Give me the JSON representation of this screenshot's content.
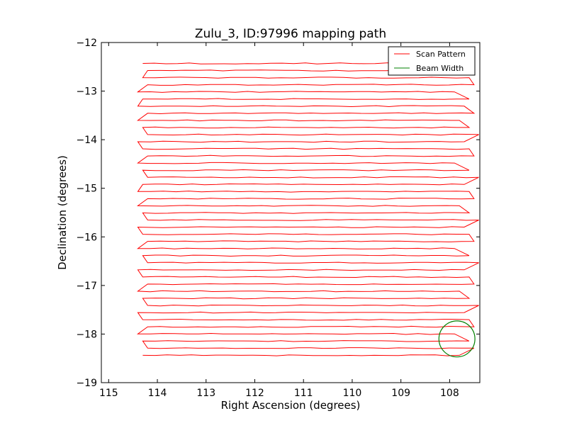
{
  "chart_data": {
    "type": "line",
    "title": "Zulu_3, ID:97996 mapping path",
    "xlabel": "Right Ascension (degrees)",
    "ylabel": "Declination (degrees)",
    "xlim": [
      115.15,
      107.38
    ],
    "ylim": [
      -19,
      -12
    ],
    "x_inverted": true,
    "xticks": [
      115,
      114,
      113,
      112,
      111,
      110,
      109,
      108
    ],
    "yticks": [
      -12,
      -13,
      -14,
      -15,
      -16,
      -17,
      -18,
      -19
    ],
    "xtick_labels": [
      "115",
      "114",
      "113",
      "112",
      "111",
      "110",
      "109",
      "108"
    ],
    "ytick_labels": [
      "−12",
      "−13",
      "−14",
      "−15",
      "−16",
      "−17",
      "−18",
      "−19"
    ],
    "grid": false,
    "legend_position": "top-right",
    "legend": [
      {
        "label": "Scan Pattern",
        "color": "#ff0000"
      },
      {
        "label": "Beam Width",
        "color": "#008000"
      }
    ],
    "scan_path": {
      "color": "#ff0000",
      "dec_start": -12.43,
      "dec_step": -0.1465,
      "rows": 42,
      "ra_left": [
        114.3,
        114.2,
        114.3,
        114.2,
        114.4,
        114.3,
        114.4,
        114.2,
        114.4,
        114.3,
        114.2,
        114.4,
        114.3,
        114.2,
        114.4,
        114.3,
        114.2,
        114.3,
        114.4,
        114.2,
        114.4,
        114.3,
        114.2,
        114.4,
        114.3,
        114.2,
        114.4,
        114.3,
        114.2,
        114.4,
        114.3,
        114.2,
        114.4,
        114.3,
        114.2,
        114.4,
        114.3,
        114.2,
        114.4,
        114.3,
        114.2,
        114.3
      ],
      "ra_right": [
        108.1,
        107.5,
        107.6,
        107.5,
        107.9,
        107.6,
        107.7,
        107.5,
        107.8,
        107.6,
        107.4,
        107.7,
        107.6,
        107.5,
        107.9,
        107.6,
        107.4,
        107.7,
        107.6,
        107.5,
        107.8,
        107.6,
        107.4,
        107.7,
        107.6,
        107.5,
        107.9,
        107.6,
        107.4,
        107.7,
        107.6,
        107.5,
        107.8,
        107.6,
        107.4,
        107.7,
        107.6,
        107.5,
        107.9,
        107.6,
        107.5,
        107.8
      ]
    },
    "beam_width": {
      "color": "#008000",
      "center_ra": 107.85,
      "center_dec": -18.1,
      "radius_deg": 0.37
    }
  }
}
